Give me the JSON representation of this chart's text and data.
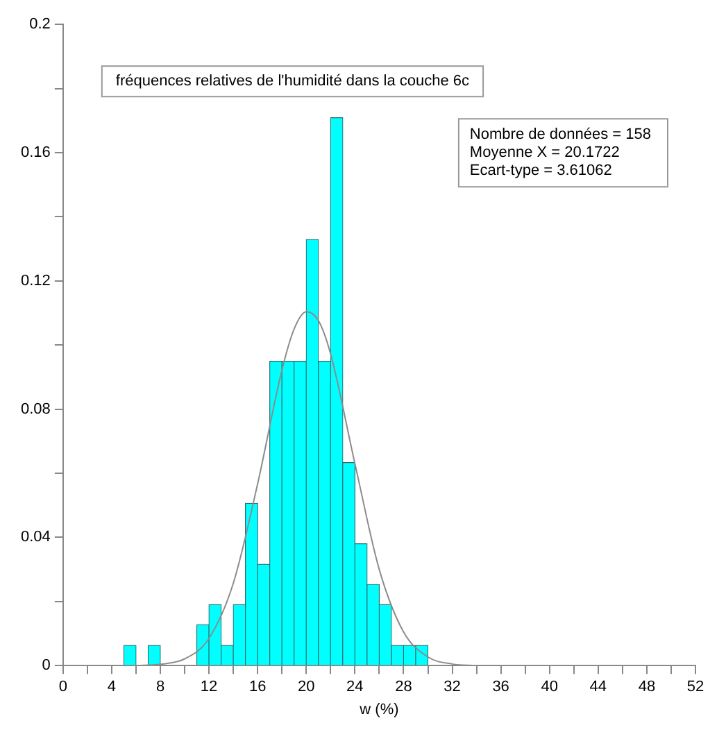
{
  "chart_data": {
    "type": "histogram",
    "title": "fréquences relatives de l'humidité dans la couche 6c",
    "xlabel": "w (%)",
    "bins": [
      5,
      6,
      7,
      8,
      9,
      10,
      11,
      12,
      13,
      14,
      15,
      16,
      17,
      18,
      19,
      20,
      21,
      22,
      23,
      24,
      25,
      26,
      27,
      28,
      29,
      30
    ],
    "values": [
      0.0063,
      0,
      0.0063,
      0,
      0,
      0,
      0.0127,
      0.019,
      0.0063,
      0.019,
      0.0506,
      0.0316,
      0.0949,
      0.0949,
      0.0949,
      0.1329,
      0.0949,
      0.1709,
      0.0633,
      0.038,
      0.0253,
      0.019,
      0.0063,
      0.0063,
      0.0063
    ],
    "color": "#00ffff",
    "series": [
      {
        "type": "line",
        "color": "#8c8c8c",
        "x": [
          6,
          8,
          10,
          12,
          14,
          16,
          18,
          19,
          20,
          21,
          22,
          24,
          26,
          28,
          30,
          32,
          34
        ],
        "values": [
          0,
          0.0004,
          0.0021,
          0.0085,
          0.0257,
          0.0567,
          0.0922,
          0.105,
          0.1104,
          0.1076,
          0.0972,
          0.063,
          0.03,
          0.0105,
          0.0027,
          0.0005,
          0
        ]
      }
    ],
    "annotations": [
      "Nombre de données = 158",
      "Moyenne X = 20.1722",
      "Ecart-type = 3.61062"
    ],
    "xlim": [
      0,
      52
    ],
    "xticks": [
      0,
      {
        "value": 2,
        "label": null
      },
      4,
      {
        "value": 6,
        "label": null
      },
      8,
      {
        "value": 10,
        "label": null
      },
      12,
      {
        "value": 14,
        "label": null
      },
      16,
      {
        "value": 18,
        "label": null
      },
      20,
      {
        "value": 22,
        "label": null
      },
      24,
      {
        "value": 26,
        "label": null
      },
      28,
      {
        "value": 30,
        "label": null
      },
      32,
      {
        "value": 34,
        "label": null
      },
      36,
      {
        "value": 38,
        "label": null
      },
      40,
      {
        "value": 42,
        "label": null
      },
      44,
      {
        "value": 46,
        "label": null
      },
      48,
      {
        "value": 50,
        "label": null
      },
      52
    ],
    "ylim": [
      0,
      0.2
    ],
    "yticks": [
      0,
      {
        "value": 0.02,
        "label": null
      },
      0.04,
      {
        "value": 0.06,
        "label": null
      },
      0.08,
      {
        "value": 0.1,
        "label": null
      },
      0.12,
      {
        "value": 0.14,
        "label": null
      },
      0.16,
      {
        "value": 0.18,
        "label": null
      },
      0.2
    ],
    "grid": false,
    "legend": false
  }
}
